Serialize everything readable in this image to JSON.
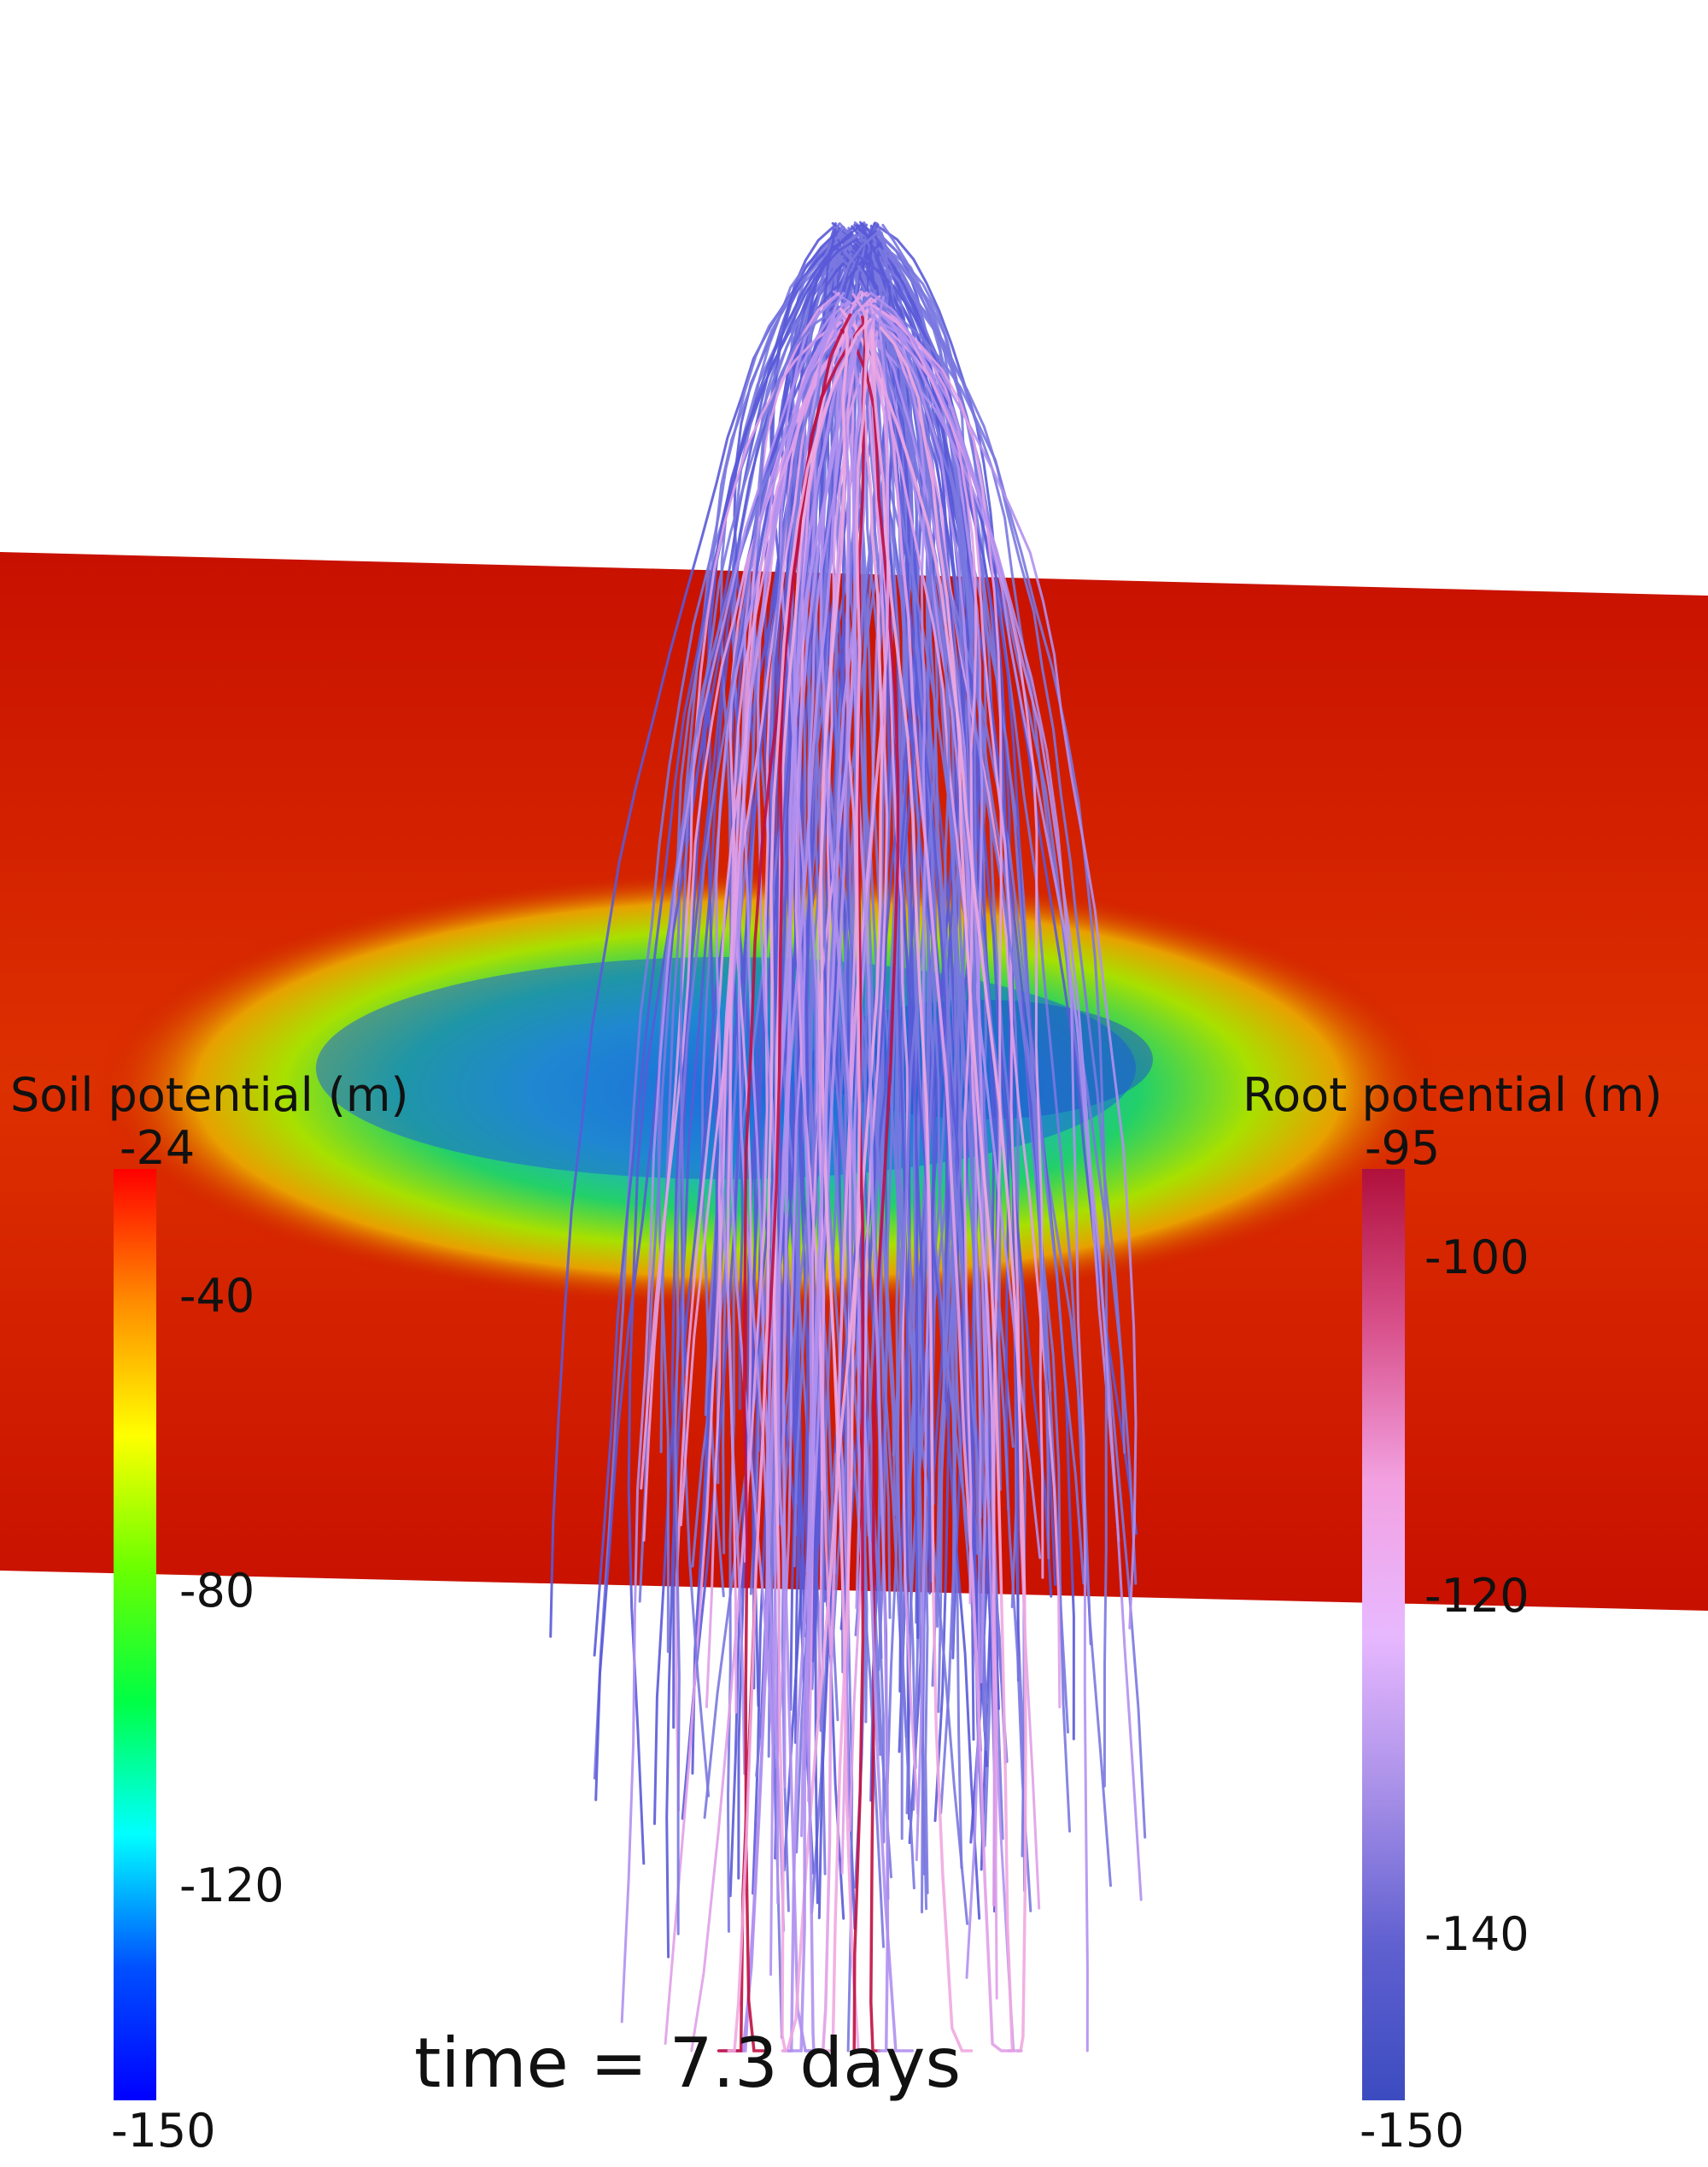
{
  "soil_legend": {
    "title": "Soil potential (m)",
    "max_label": "-24",
    "min_label": "-150",
    "tick_labels": [
      "-40",
      "-80",
      "-120"
    ],
    "colors": [
      "#ff0000",
      "#ff8c00",
      "#ffff00",
      "#6bff00",
      "#00ff44",
      "#00ffff",
      "#0050ff",
      "#0000ff"
    ]
  },
  "root_legend": {
    "title": "Root potential (m)",
    "max_label": "-95",
    "min_label": "-150",
    "tick_labels": [
      "-100",
      "-120",
      "-140"
    ],
    "colors": [
      "#b0103c",
      "#d8508a",
      "#f2a0e0",
      "#e8b8ff",
      "#a890e8",
      "#6060d0",
      "#3b4cc0"
    ]
  },
  "time_label": "time = 7.3 days",
  "scene": {
    "soil_plane_color": "#cc1400",
    "dry_zone_colors": [
      "#e0c000",
      "#44dd22",
      "#22c090",
      "#2080e0"
    ],
    "root_colors": [
      "#5a5ad8",
      "#7a78e0",
      "#b090f0",
      "#e0a0e8",
      "#f0a8e0",
      "#c01040"
    ]
  }
}
